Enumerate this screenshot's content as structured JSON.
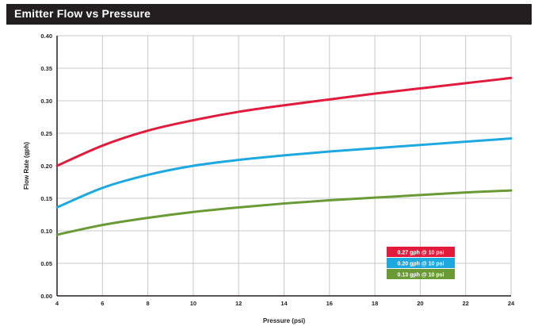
{
  "title": "Emitter Flow vs Pressure",
  "colors": {
    "title_bg": "#231f20",
    "grid": "#c8c8c8",
    "axis": "#231f20"
  },
  "chart_data": {
    "type": "line",
    "title": "Emitter Flow vs Pressure",
    "xlabel": "Pressure (psi)",
    "ylabel": "Flow Rate (gph)",
    "xlim": [
      4,
      24
    ],
    "ylim": [
      0,
      0.4
    ],
    "xticks": [
      4,
      6,
      8,
      10,
      12,
      14,
      16,
      18,
      20,
      22,
      24
    ],
    "yticks": [
      0.0,
      0.05,
      0.1,
      0.15,
      0.2,
      0.25,
      0.3,
      0.35,
      0.4
    ],
    "xtick_labels": [
      "4",
      "6",
      "8",
      "10",
      "12",
      "14",
      "16",
      "18",
      "20",
      "22",
      "24"
    ],
    "ytick_labels": [
      "0.00",
      "0.05",
      "0.10",
      "0.15",
      "0.20",
      "0.25",
      "0.30",
      "0.35",
      "0.40"
    ],
    "grid": true,
    "legend_position": "bottom-right",
    "x": [
      4,
      6,
      8,
      10,
      12,
      14,
      16,
      18,
      20,
      22,
      24
    ],
    "series": [
      {
        "name": "0.27 gph @ 10 psi",
        "color": "#e21b3c",
        "values": [
          0.2,
          0.231,
          0.254,
          0.27,
          0.283,
          0.293,
          0.302,
          0.311,
          0.319,
          0.327,
          0.335
        ]
      },
      {
        "name": "0.20 gph @ 10 psi",
        "color": "#1ea8e0",
        "values": [
          0.136,
          0.166,
          0.186,
          0.2,
          0.209,
          0.216,
          0.222,
          0.227,
          0.232,
          0.237,
          0.242
        ]
      },
      {
        "name": "0.13 gph @ 10 psi",
        "color": "#6a9a35",
        "values": [
          0.094,
          0.109,
          0.12,
          0.129,
          0.136,
          0.142,
          0.147,
          0.151,
          0.155,
          0.159,
          0.162
        ]
      }
    ]
  }
}
